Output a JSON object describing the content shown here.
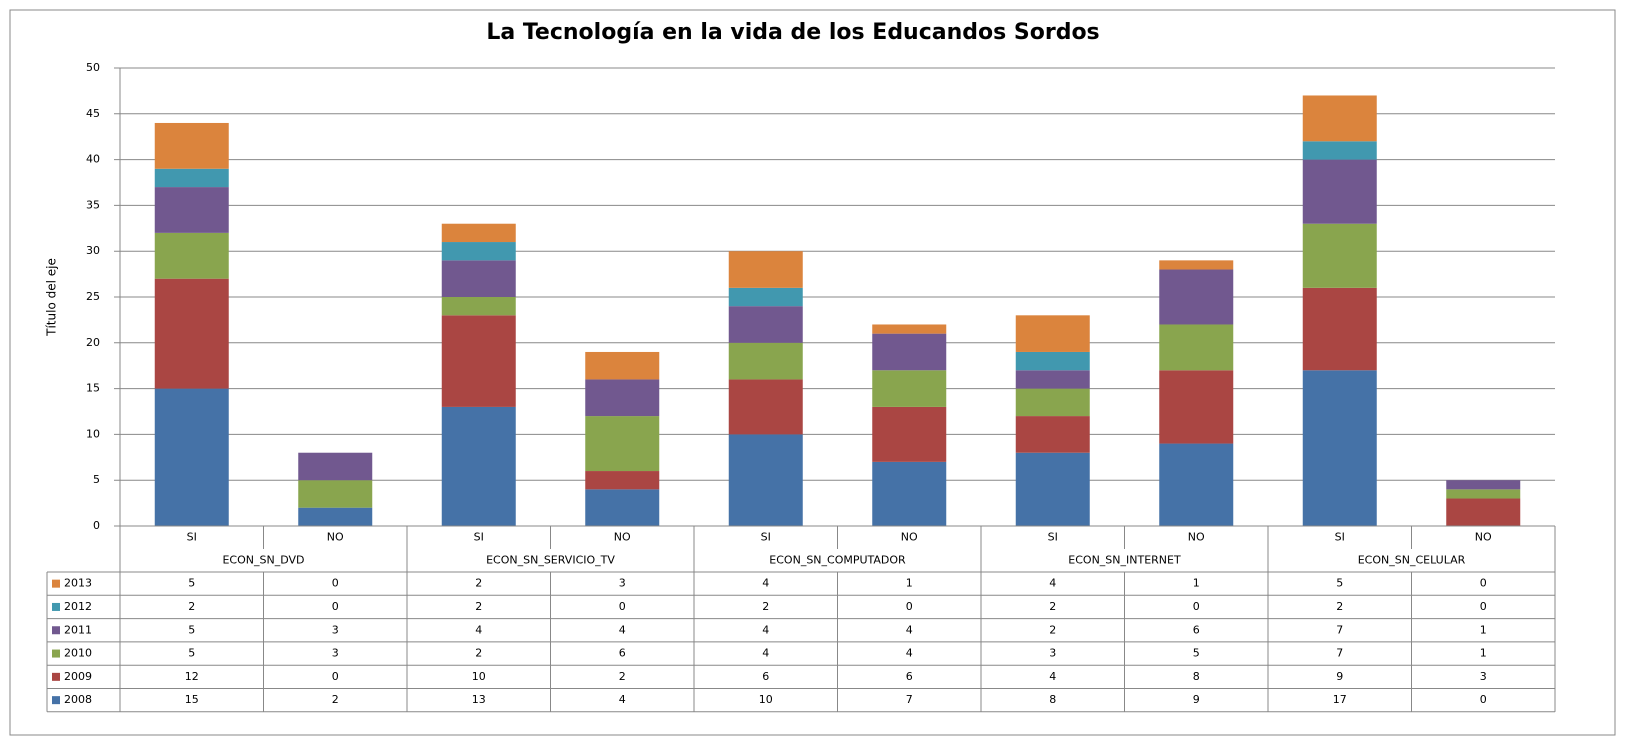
{
  "chart_data": {
    "type": "stacked_bar",
    "title": "La Tecnología en la vida de los Educandos Sordos",
    "y_axis_label": "Título del eje",
    "categories": [
      "SI",
      "NO",
      "SI",
      "NO",
      "SI",
      "NO",
      "SI",
      "NO",
      "SI",
      "NO"
    ],
    "groups": [
      "ECON_SN_DVD",
      "ECON_SN_SERVICIO_TV",
      "ECON_SN_COMPUTADOR",
      "ECON_SN_INTERNET",
      "ECON_SN_CELULAR"
    ],
    "series": [
      {
        "name": "2008",
        "color": "#4572a7",
        "values": [
          15,
          2,
          13,
          4,
          10,
          7,
          8,
          9,
          17,
          0
        ]
      },
      {
        "name": "2009",
        "color": "#aa4643",
        "values": [
          12,
          0,
          10,
          2,
          6,
          6,
          4,
          8,
          9,
          3
        ]
      },
      {
        "name": "2010",
        "color": "#89a54e",
        "values": [
          5,
          3,
          2,
          6,
          4,
          4,
          3,
          5,
          7,
          1
        ]
      },
      {
        "name": "2011",
        "color": "#71588f",
        "values": [
          5,
          3,
          4,
          4,
          4,
          4,
          2,
          6,
          7,
          1
        ]
      },
      {
        "name": "2012",
        "color": "#4198af",
        "values": [
          2,
          0,
          2,
          0,
          2,
          0,
          2,
          0,
          2,
          0
        ]
      },
      {
        "name": "2013",
        "color": "#db843d",
        "values": [
          5,
          0,
          2,
          3,
          4,
          1,
          4,
          1,
          5,
          0
        ]
      }
    ],
    "ylim": [
      0,
      50
    ],
    "yticks": [
      0,
      5,
      10,
      15,
      20,
      25,
      30,
      35,
      40,
      45,
      50
    ],
    "grid": true
  }
}
